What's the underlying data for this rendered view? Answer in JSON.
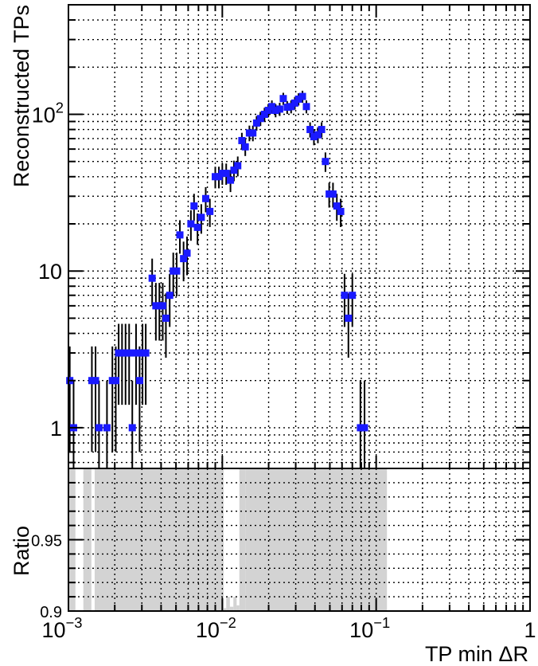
{
  "chart_data": [
    {
      "type": "scatter",
      "panel": "main",
      "xscale": "log",
      "yscale": "log",
      "xlim": [
        0.001,
        1
      ],
      "ylim": [
        0.55,
        500
      ],
      "grid": true,
      "ylabel": "Reconstructed TPs",
      "y_tick_labels": [
        {
          "value": 1,
          "text": "1"
        },
        {
          "value": 10,
          "text": "10"
        },
        {
          "value": 100,
          "base": "10",
          "exp": "2"
        }
      ],
      "marker_color": "#1a1aff",
      "error_bar_color": "#000000",
      "points": [
        [
          0.00102,
          2,
          1.3
        ],
        [
          0.00108,
          1,
          1.0
        ],
        [
          0.00142,
          2,
          1.3
        ],
        [
          0.0015,
          2,
          1.3
        ],
        [
          0.00158,
          1,
          1.0
        ],
        [
          0.00178,
          1,
          1.0
        ],
        [
          0.00193,
          2,
          1.3
        ],
        [
          0.00203,
          2,
          1.3
        ],
        [
          0.00212,
          3,
          1.6
        ],
        [
          0.00223,
          3,
          1.6
        ],
        [
          0.00235,
          3,
          1.6
        ],
        [
          0.00248,
          3,
          1.6
        ],
        [
          0.0026,
          1,
          1.0
        ],
        [
          0.00275,
          3,
          1.6
        ],
        [
          0.0029,
          2,
          1.3
        ],
        [
          0.00303,
          3,
          1.6
        ],
        [
          0.00318,
          3,
          1.6
        ],
        [
          0.0035,
          9,
          3.0
        ],
        [
          0.0037,
          6,
          2.4
        ],
        [
          0.0039,
          6,
          2.4
        ],
        [
          0.0041,
          6,
          2.4
        ],
        [
          0.0043,
          5,
          2.2
        ],
        [
          0.00455,
          7,
          2.6
        ],
        [
          0.0048,
          10,
          3.1
        ],
        [
          0.00505,
          10,
          3.1
        ],
        [
          0.0053,
          17,
          4.1
        ],
        [
          0.0056,
          12,
          3.4
        ],
        [
          0.0059,
          13,
          3.6
        ],
        [
          0.00625,
          20,
          4.4
        ],
        [
          0.00655,
          26,
          5.1
        ],
        [
          0.0069,
          19,
          4.3
        ],
        [
          0.0073,
          22,
          4.7
        ],
        [
          0.0078,
          29,
          5.3
        ],
        [
          0.0083,
          24,
          4.9
        ],
        [
          0.009,
          40,
          6.3
        ],
        [
          0.0095,
          40,
          6.3
        ],
        [
          0.01,
          42,
          6.5
        ],
        [
          0.0106,
          42,
          6.5
        ],
        [
          0.0113,
          38,
          6.1
        ],
        [
          0.0119,
          44,
          6.6
        ],
        [
          0.0126,
          47,
          6.8
        ],
        [
          0.0134,
          68,
          8.2
        ],
        [
          0.0141,
          62,
          7.8
        ],
        [
          0.015,
          76,
          8.7
        ],
        [
          0.0158,
          76,
          8.7
        ],
        [
          0.0167,
          88,
          9.4
        ],
        [
          0.0177,
          94,
          9.7
        ],
        [
          0.0188,
          100,
          10.0
        ],
        [
          0.0199,
          106,
          10.3
        ],
        [
          0.021,
          112,
          10.6
        ],
        [
          0.0222,
          106,
          10.3
        ],
        [
          0.0236,
          108,
          10.4
        ],
        [
          0.0249,
          126,
          11.2
        ],
        [
          0.0264,
          111,
          10.5
        ],
        [
          0.028,
          112,
          10.6
        ],
        [
          0.0296,
          118,
          10.9
        ],
        [
          0.0313,
          125,
          11.2
        ],
        [
          0.0332,
          130,
          11.4
        ],
        [
          0.0352,
          112,
          10.6
        ],
        [
          0.0372,
          80,
          8.9
        ],
        [
          0.0394,
          72,
          8.5
        ],
        [
          0.0418,
          74,
          8.6
        ],
        [
          0.0442,
          80,
          8.9
        ],
        [
          0.0468,
          50,
          7.1
        ],
        [
          0.0495,
          31,
          5.6
        ],
        [
          0.0524,
          31,
          5.6
        ],
        [
          0.0555,
          26,
          5.1
        ],
        [
          0.0588,
          24,
          4.9
        ],
        [
          0.0623,
          7,
          2.6
        ],
        [
          0.066,
          5,
          2.2
        ],
        [
          0.07,
          7,
          2.6
        ],
        [
          0.079,
          1,
          1.0
        ],
        [
          0.084,
          1,
          1.0
        ]
      ]
    },
    {
      "type": "area",
      "panel": "ratio",
      "xscale": "log",
      "yscale": "linear",
      "xlim": [
        0.001,
        1
      ],
      "ylim": [
        0.9,
        1.0
      ],
      "grid": true,
      "ylabel": "Ratio",
      "xlabel": "TP min ΔR",
      "y_tick_labels": [
        {
          "value": 0.9,
          "text": "0.9"
        },
        {
          "value": 0.95,
          "text": "0.95"
        }
      ],
      "x_tick_labels": [
        {
          "value": 0.001,
          "base": "10",
          "exp": "−3"
        },
        {
          "value": 0.01,
          "base": "10",
          "exp": "−2"
        },
        {
          "value": 0.1,
          "base": "10",
          "exp": "−1"
        },
        {
          "value": 1,
          "text": "1"
        }
      ],
      "fill_color": "#d3d3d3",
      "bins": [
        [
          0.001,
          0.00111,
          1.0
        ],
        [
          0.00111,
          0.00125,
          0.9
        ],
        [
          0.00125,
          0.00141,
          1.0
        ],
        [
          0.00141,
          0.00148,
          0.9
        ],
        [
          0.00148,
          0.0102,
          1.0
        ],
        [
          0.0102,
          0.0106,
          0.902
        ],
        [
          0.0106,
          0.0112,
          0.91
        ],
        [
          0.0112,
          0.0118,
          0.903
        ],
        [
          0.0118,
          0.0124,
          0.91
        ],
        [
          0.0124,
          0.0129,
          0.904
        ],
        [
          0.0129,
          0.0141,
          1.0
        ],
        [
          0.0141,
          0.1175,
          1.0
        ]
      ]
    }
  ]
}
